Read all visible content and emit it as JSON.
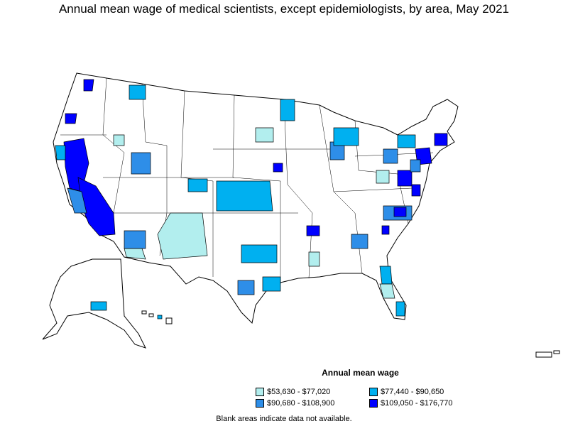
{
  "title": "Annual mean wage of medical scientists, except epidemiologists, by area, May 2021",
  "legend": {
    "title": "Annual mean wage",
    "items": [
      {
        "label": "$53,630 - $77,020",
        "color": "#b2eeee"
      },
      {
        "label": "$77,440 - $90,650",
        "color": "#00b0f0"
      },
      {
        "label": "$90,680 - $108,900",
        "color": "#2e8ee8"
      },
      {
        "label": "$109,050 - $176,770",
        "color": "#0000ff"
      }
    ]
  },
  "footnote": "Blank areas indicate data not available.",
  "colors": {
    "tier1": "#b2eeee",
    "tier2": "#00b0f0",
    "tier3": "#2e8ee8",
    "tier4": "#0000ff",
    "no_data": "#ffffff"
  }
}
